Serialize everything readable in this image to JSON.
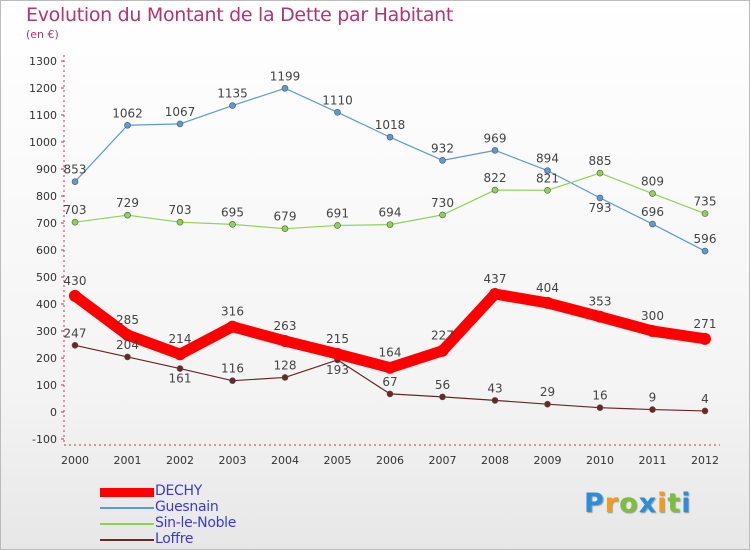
{
  "title": "Evolution du Montant de la Dette par Habitant",
  "subtitle": "(en €)",
  "chart_data": {
    "type": "line",
    "x": [
      "2000",
      "2001",
      "2002",
      "2003",
      "2004",
      "2005",
      "2006",
      "2007",
      "2008",
      "2009",
      "2010",
      "2011",
      "2012"
    ],
    "ylim": [
      -100,
      1300
    ],
    "yticks": [
      -100,
      0,
      100,
      200,
      300,
      400,
      500,
      600,
      700,
      800,
      900,
      1000,
      1100,
      1200,
      1300
    ],
    "grid": false,
    "legend_position": "bottom-left",
    "series": [
      {
        "name": "DECHY",
        "color": "#ff0000",
        "values": [
          430,
          285,
          214,
          316,
          263,
          215,
          164,
          227,
          437,
          404,
          353,
          300,
          271
        ]
      },
      {
        "name": "Guesnain",
        "color": "#5b9bd5",
        "values": [
          853,
          1062,
          1067,
          1135,
          1199,
          1110,
          1018,
          932,
          969,
          894,
          793,
          696,
          596
        ]
      },
      {
        "name": "Sin-le-Noble",
        "color": "#8ed452",
        "values": [
          703,
          729,
          703,
          695,
          679,
          691,
          694,
          730,
          822,
          821,
          885,
          809,
          735
        ]
      },
      {
        "name": "Loffre",
        "color": "#6b2626",
        "values": [
          247,
          204,
          161,
          116,
          128,
          193,
          67,
          56,
          43,
          29,
          16,
          9,
          4
        ]
      }
    ]
  },
  "logo": {
    "letters": [
      "P",
      "r",
      "o",
      "x",
      "i",
      "t",
      "i"
    ],
    "colors": [
      "#2a8fd8",
      "#f29b1d",
      "#7cbf3a",
      "#2a8fd8",
      "#f29b1d",
      "#7cbf3a",
      "#2a8fd8"
    ]
  }
}
